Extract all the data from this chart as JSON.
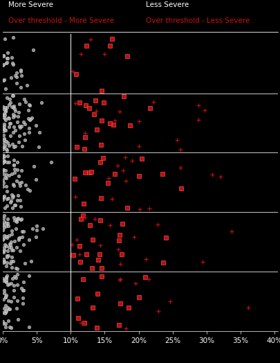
{
  "background_color": "#000000",
  "text_color": "#ffffff",
  "threshold": 0.1,
  "xlim": [
    0.0,
    0.405
  ],
  "xticks": [
    0.0,
    0.05,
    0.1,
    0.15,
    0.2,
    0.25,
    0.3,
    0.35,
    0.4
  ],
  "xtick_labels": [
    "0%",
    "5%",
    "10%",
    "15%",
    "20%",
    "25%",
    "30%",
    "35%",
    "40%"
  ],
  "n_bands": 5,
  "gray_color": "#b0b0b0",
  "red_color": "#cc1111",
  "legend_labels": [
    "More Severe",
    "Over threshold - More Severe",
    "Less Severe",
    "Over threshold - Less Severe"
  ],
  "figsize": [
    4.06,
    5.24
  ],
  "dpi": 100,
  "seed": 42,
  "gray_counts": [
    55,
    78,
    68,
    88,
    28
  ],
  "red_more_severe_counts": [
    13,
    19,
    15,
    17,
    6
  ],
  "red_less_severe_counts": [
    9,
    15,
    13,
    13,
    4
  ]
}
